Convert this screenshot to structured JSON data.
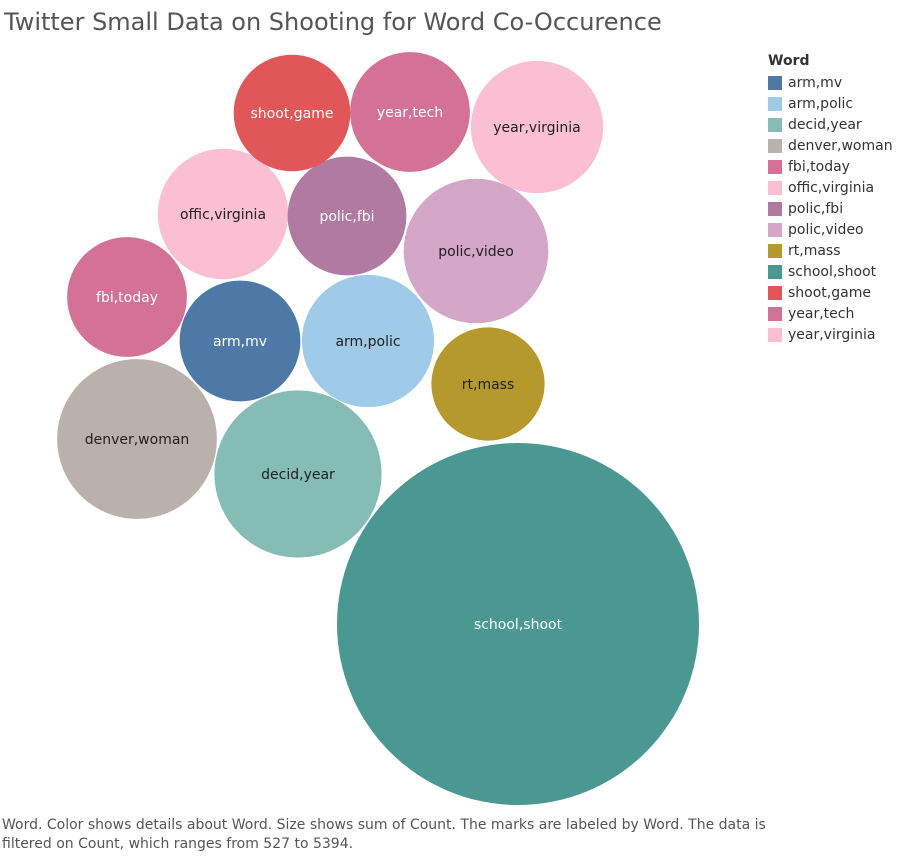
{
  "chart_data": {
    "type": "bubble",
    "title": "Twitter Small Data on Shooting for Word Co-Occurence",
    "legend": {
      "title": "Word",
      "position": "right"
    },
    "marks": [
      {
        "word": "school,shoot",
        "value": 5394,
        "color": "#4a9891",
        "label_color": "#ffffff"
      },
      {
        "word": "denver,woman",
        "value": 1050,
        "color": "#bab0ac",
        "label_color": "#222222"
      },
      {
        "word": "decid,year",
        "value": 1150,
        "color": "#86bcb6",
        "label_color": "#222222"
      },
      {
        "word": "polic,video",
        "value": 860,
        "color": "#d4a6c8",
        "label_color": "#222222"
      },
      {
        "word": "year,virginia",
        "value": 720,
        "color": "#fabfd2",
        "label_color": "#222222"
      },
      {
        "word": "offic,virginia",
        "value": 700,
        "color": "#fabfd2",
        "label_color": "#222222"
      },
      {
        "word": "arm,polic",
        "value": 720,
        "color": "#a0cbe8",
        "label_color": "#222222"
      },
      {
        "word": "polic,fbi",
        "value": 580,
        "color": "#b07aa1",
        "label_color": "#ffffff"
      },
      {
        "word": "year,tech",
        "value": 590,
        "color": "#d37295",
        "label_color": "#ffffff"
      },
      {
        "word": "shoot,game",
        "value": 560,
        "color": "#e15759",
        "label_color": "#ffffff"
      },
      {
        "word": "arm,mv",
        "value": 600,
        "color": "#4e79a7",
        "label_color": "#ffffff"
      },
      {
        "word": "fbi,today",
        "value": 590,
        "color": "#d37295",
        "label_color": "#ffffff"
      },
      {
        "word": "rt,mass",
        "value": 527,
        "color": "#b6992d",
        "label_color": "#222222"
      }
    ],
    "legend_entries": [
      {
        "label": "arm,mv",
        "color": "#4e79a7"
      },
      {
        "label": "arm,polic",
        "color": "#a0cbe8"
      },
      {
        "label": "decid,year",
        "color": "#86bcb6"
      },
      {
        "label": "denver,woman",
        "color": "#bab0ac"
      },
      {
        "label": "fbi,today",
        "color": "#d37295"
      },
      {
        "label": "offic,virginia",
        "color": "#fabfd2"
      },
      {
        "label": "polic,fbi",
        "color": "#b07aa1"
      },
      {
        "label": "polic,video",
        "color": "#d4a6c8"
      },
      {
        "label": "rt,mass",
        "color": "#b6992d"
      },
      {
        "label": "school,shoot",
        "color": "#4a9891"
      },
      {
        "label": "shoot,game",
        "color": "#e15759"
      },
      {
        "label": "year,tech",
        "color": "#d37295"
      },
      {
        "label": "year,virginia",
        "color": "#fabfd2"
      }
    ]
  },
  "footnote": "Word.  Color shows details about Word.  Size shows sum of Count.  The marks are labeled by Word. The data is filtered on Count, which ranges from 527 to 5394."
}
